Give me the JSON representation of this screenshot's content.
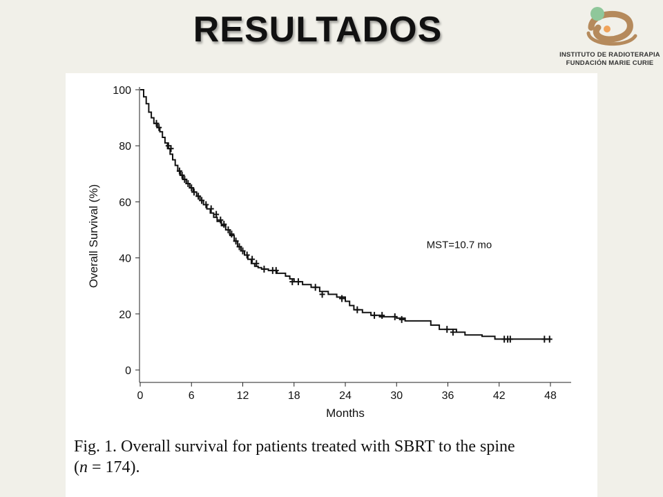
{
  "slide": {
    "title": "RESULTADOS",
    "logo": {
      "line1": "INSTITUTO DE RADIOTERAPIA",
      "line2": "FUNDACIÓN MARIE CURIE",
      "colors": {
        "swirl": "#b58a5c",
        "green_ball": "#8fc79a",
        "orange_dot": "#f0a35a"
      }
    }
  },
  "caption": {
    "prefix": "Fig. 1.  Overall survival for patients treated with SBRT to the spine",
    "n_open": "(",
    "n_var": "n",
    "n_value": " = 174)."
  },
  "chart_data": {
    "type": "line",
    "title": "",
    "xlabel": "Months",
    "ylabel": "Overall Survival (%)",
    "xlim": [
      0,
      48
    ],
    "ylim": [
      0,
      100
    ],
    "xticks": [
      0,
      6,
      12,
      18,
      24,
      30,
      36,
      42,
      48
    ],
    "yticks": [
      0,
      20,
      40,
      60,
      80,
      100
    ],
    "grid": false,
    "step": true,
    "annotation": {
      "text": "MST=10.7 mo",
      "x": 33.5,
      "y": 43.5
    },
    "series": [
      {
        "color": "#111111",
        "x": [
          0,
          0.4,
          0.7,
          1.0,
          1.3,
          1.6,
          2.0,
          2.3,
          2.6,
          2.9,
          3.2,
          3.5,
          3.8,
          4.1,
          4.4,
          4.7,
          5.0,
          5.4,
          5.8,
          6.2,
          6.6,
          7.0,
          7.4,
          7.8,
          8.2,
          8.6,
          9.0,
          9.5,
          10.0,
          10.5,
          11.0,
          11.4,
          11.8,
          12.2,
          12.6,
          13.0,
          13.4,
          13.8,
          14.2,
          15.0,
          16.0,
          17.0,
          17.5,
          18.0,
          19.0,
          20.0,
          21.0,
          22.0,
          23.0,
          24.0,
          24.5,
          25.0,
          26.0,
          27.0,
          28.0,
          30.0,
          31.0,
          34.0,
          35.0,
          37.0,
          38.0,
          40.0,
          41.5,
          44.0,
          48.0
        ],
        "y": [
          100,
          97.5,
          95,
          92,
          90,
          88,
          86.5,
          85,
          83,
          81,
          79,
          77,
          75,
          73,
          71,
          69.5,
          68,
          66.5,
          65,
          63.5,
          62,
          60.5,
          59,
          57.5,
          56,
          54.5,
          53,
          51.5,
          50,
          48,
          46,
          44,
          42.5,
          41,
          39.5,
          38,
          37,
          36.5,
          36,
          35.5,
          34.5,
          33.5,
          32.5,
          31.5,
          30.5,
          29.5,
          28,
          27,
          26,
          24.5,
          23,
          21.5,
          20.5,
          19.5,
          19,
          18.5,
          17.5,
          16,
          14.5,
          13.5,
          12.5,
          12,
          11,
          11,
          11
        ]
      }
    ],
    "censored": {
      "x": [
        1.9,
        2.2,
        3.3,
        3.6,
        4.6,
        4.9,
        5.2,
        5.6,
        6.0,
        6.3,
        6.8,
        7.2,
        7.7,
        8.3,
        8.9,
        9.4,
        9.8,
        10.3,
        10.7,
        11.2,
        11.6,
        12.0,
        12.5,
        13.1,
        13.6,
        14.5,
        15.5,
        15.9,
        17.8,
        18.5,
        20.5,
        21.3,
        23.6,
        25.4,
        27.4,
        28.3,
        29.8,
        30.6,
        35.9,
        36.6,
        42.6,
        43.0,
        43.3,
        47.3,
        47.9
      ],
      "y": [
        88,
        86.5,
        80,
        79,
        71,
        69.5,
        68,
        66.5,
        65,
        63.5,
        62,
        60.5,
        59,
        57.5,
        55.5,
        53.5,
        52,
        50,
        48.5,
        46,
        44,
        42.5,
        41,
        39.5,
        38,
        36,
        35.5,
        35.5,
        31.5,
        31.5,
        29.5,
        27,
        25.5,
        21.5,
        19.5,
        19.5,
        19,
        18,
        14.5,
        13.5,
        11,
        11,
        11,
        11,
        11
      ]
    }
  }
}
